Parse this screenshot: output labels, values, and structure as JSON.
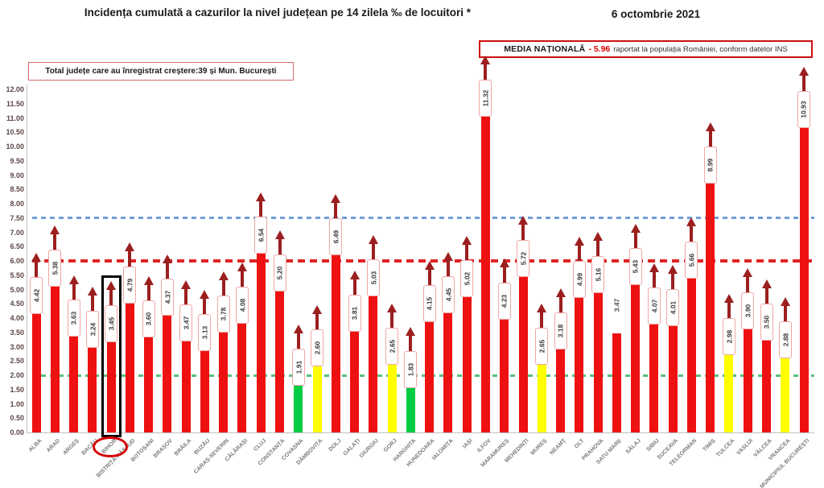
{
  "title": "Incidența cumulată a cazurilor la nivel județean pe 14 zilela ‰ de locuitori *",
  "date": "6 octombrie 2021",
  "national_average": {
    "label": "MEDIA NAȚIONALĂ",
    "value_text": "- 5.96",
    "note": "raportat la populația României, conform datelor INS"
  },
  "total_note": "Total județe care au înregistrat creștere:39 și Mun. București",
  "chart_data": {
    "type": "bar",
    "title": "Incidența cumulată a cazurilor la nivel județean pe 14 zilela ‰ de locuitori *",
    "xlabel": "",
    "ylabel": "",
    "ylim": [
      0,
      12
    ],
    "ytick_step": 0.5,
    "grid": false,
    "legend_position": "none",
    "yticks": [
      "12.00",
      "11.50",
      "11.00",
      "10.50",
      "10.00",
      "9.50",
      "9.00",
      "8.50",
      "8.00",
      "7.50",
      "7.00",
      "6.50",
      "6.00",
      "5.50",
      "5.00",
      "4.50",
      "4.00",
      "3.50",
      "3.00",
      "2.50",
      "2.00",
      "1.50",
      "1.00",
      "0.50",
      "0.00"
    ],
    "categories": [
      "ALBA",
      "ARAD",
      "ARGEȘ",
      "BACĂU",
      "BIHOR",
      "BISTRIȚA-NĂSĂUD",
      "BOTOȘANI",
      "BRAȘOV",
      "BRĂILA",
      "BUZĂU",
      "CARAȘ-SEVERIN",
      "CĂLĂRAȘI",
      "CLUJ",
      "CONSTANȚA",
      "COVASNA",
      "DÂMBOVIȚA",
      "DOLJ",
      "GALAȚI",
      "GIURGIU",
      "GORJ",
      "HARGHITA",
      "HUNEDOARA",
      "IALOMIȚA",
      "IAȘI",
      "ILFOV",
      "MARAMUREȘ",
      "MEHEDINȚI",
      "MUREȘ",
      "NEAMȚ",
      "OLT",
      "PRAHOVA",
      "SATU MARE",
      "SĂLAJ",
      "SIBIU",
      "SUCEAVA",
      "TELEORMAN",
      "TIMIȘ",
      "TULCEA",
      "VASLUI",
      "VÂLCEA",
      "VRANCEA",
      "MUNICIPIUL BUCUREȘTI"
    ],
    "values": [
      4.42,
      5.38,
      3.63,
      3.24,
      3.45,
      4.79,
      3.6,
      4.37,
      3.47,
      3.13,
      3.78,
      4.08,
      6.54,
      5.2,
      1.91,
      2.6,
      6.49,
      3.81,
      5.03,
      2.65,
      1.83,
      4.15,
      4.45,
      5.02,
      11.32,
      4.23,
      5.72,
      2.65,
      3.18,
      4.99,
      5.16,
      3.47,
      5.43,
      4.07,
      4.01,
      5.66,
      8.99,
      2.98,
      3.9,
      3.5,
      2.88,
      10.93
    ],
    "bar_colors": [
      "red",
      "red",
      "red",
      "red",
      "red",
      "red",
      "red",
      "red",
      "red",
      "red",
      "red",
      "red",
      "red",
      "red",
      "green",
      "yellow",
      "red",
      "red",
      "red",
      "yellow",
      "green",
      "red",
      "red",
      "red",
      "red",
      "red",
      "red",
      "yellow",
      "red",
      "red",
      "red",
      "red",
      "red",
      "red",
      "red",
      "red",
      "red",
      "yellow",
      "red",
      "red",
      "yellow",
      "red"
    ],
    "has_arrow": [
      true,
      true,
      true,
      true,
      true,
      true,
      true,
      true,
      true,
      true,
      true,
      true,
      true,
      true,
      true,
      true,
      true,
      true,
      true,
      true,
      true,
      true,
      true,
      true,
      true,
      true,
      true,
      true,
      true,
      true,
      true,
      false,
      true,
      true,
      true,
      true,
      true,
      true,
      true,
      true,
      true,
      true
    ],
    "palette": {
      "red": "#ee1111",
      "yellow": "#ffff00",
      "green": "#00cc44",
      "arrow": "#9c1f1f",
      "label_box_border": "#f0a6a6"
    },
    "reference_lines": [
      {
        "label": "7.50",
        "value": 7.5,
        "color": "#6f9fd8",
        "height": 3,
        "dash": 6,
        "gap": 5
      },
      {
        "label": "6.00",
        "value": 6.0,
        "color": "#e02424",
        "height": 4,
        "dash": 9,
        "gap": 6
      },
      {
        "label": "2.00",
        "value": 2.0,
        "color": "#57c17d",
        "height": 3,
        "dash": 6,
        "gap": 5
      }
    ],
    "highlight": {
      "county": "BIHOR",
      "index": 4,
      "rectangle_color": "#000000",
      "ellipse_color": "#d40000"
    }
  }
}
